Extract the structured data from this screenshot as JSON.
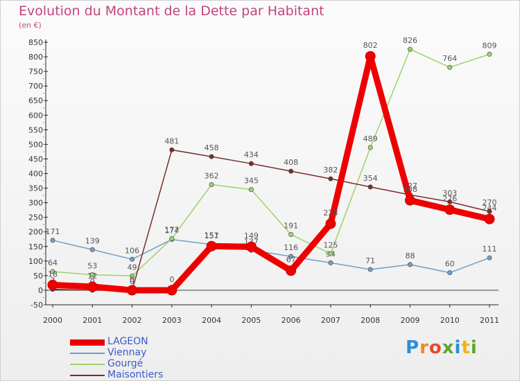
{
  "title": "Evolution du Montant de la Dette par Habitant",
  "unit": "(en €)",
  "logo": {
    "letters": [
      "P",
      "r",
      "o",
      "x",
      "i",
      "t",
      "i"
    ],
    "colors": [
      "#2a8fd6",
      "#f08a1c",
      "#e84a2a",
      "#5aa82a",
      "#2a8fd6",
      "#f0b41c",
      "#5aa82a"
    ]
  },
  "chart_data": {
    "type": "line",
    "title": "Evolution du Montant de la Dette par Habitant",
    "ylabel": "(en €)",
    "xlabel": "",
    "x": [
      "2000",
      "2001",
      "2002",
      "2003",
      "2004",
      "2005",
      "2006",
      "2007",
      "2008",
      "2009",
      "2010",
      "2011"
    ],
    "ylim": [
      -50,
      850
    ],
    "yticks": [
      -50,
      0,
      50,
      100,
      150,
      200,
      250,
      300,
      350,
      400,
      450,
      500,
      550,
      600,
      650,
      700,
      750,
      800,
      850
    ],
    "grid": false,
    "legend_position": "bottom-left",
    "series": [
      {
        "name": "LAGEON",
        "color": "#ee0000",
        "values": [
          18,
          12,
          0,
          0,
          151,
          149,
          67,
          228,
          802,
          308,
          276,
          244
        ]
      },
      {
        "name": "Viennay",
        "color": "#6f9fc8",
        "values": [
          171,
          139,
          106,
          174,
          157,
          137,
          116,
          94,
          71,
          88,
          60,
          111
        ]
      },
      {
        "name": "Gourgé",
        "color": "#9bd36a",
        "values": [
          64,
          53,
          49,
          177,
          362,
          345,
          191,
          125,
          489,
          826,
          764,
          809
        ]
      },
      {
        "name": "Maisontiers",
        "color": "#7a2c2c",
        "values": [
          3,
          0,
          0,
          481,
          458,
          434,
          408,
          382,
          354,
          327,
          303,
          270
        ]
      }
    ]
  }
}
